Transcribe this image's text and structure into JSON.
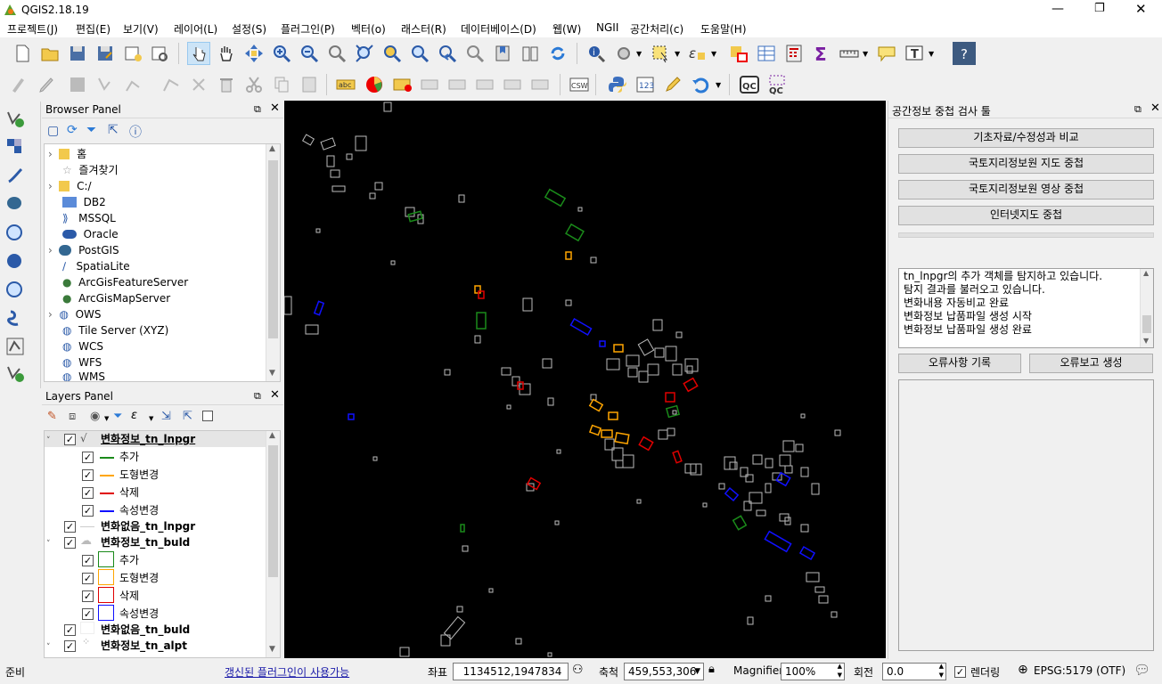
{
  "window": {
    "title": "QGIS2.18.19"
  },
  "menu": [
    "프로젝트(J)",
    "편집(E)",
    "보기(V)",
    "레이어(L)",
    "설정(S)",
    "플러그인(P)",
    "벡터(o)",
    "래스터(R)",
    "데이터베이스(D)",
    "웹(W)",
    "NGII",
    "공간처리(c)",
    "도움말(H)"
  ],
  "browser": {
    "title": "Browser Panel",
    "items": [
      "홈",
      "즐겨찾기",
      "C:/",
      "DB2",
      "MSSQL",
      "Oracle",
      "PostGIS",
      "SpatiaLite",
      "ArcGisFeatureServer",
      "ArcGisMapServer",
      "OWS",
      "Tile Server (XYZ)",
      "WCS",
      "WFS",
      "WMS"
    ]
  },
  "layers": {
    "title": "Layers Panel",
    "items": [
      {
        "label": "변화정보_tn_lnpgr",
        "bold": true
      },
      {
        "label": "추가"
      },
      {
        "label": "도형변경"
      },
      {
        "label": "삭제"
      },
      {
        "label": "속성변경"
      },
      {
        "label": "변화없음_tn_lnpgr",
        "bold": true
      },
      {
        "label": "변화정보_tn_buld",
        "bold": true
      },
      {
        "label": "추가"
      },
      {
        "label": "도형변경"
      },
      {
        "label": "삭제"
      },
      {
        "label": "속성변경"
      },
      {
        "label": "변화없음_tn_buld",
        "bold": true
      },
      {
        "label": "변화정보_tn_alpt",
        "bold": true
      }
    ]
  },
  "colors": {
    "add": "#1a8a1a",
    "shape": "#ffa500",
    "delete": "#e00000",
    "attr": "#1010ff"
  },
  "tool_panel": {
    "title": "공간정보 중첩 검사 툴",
    "buttons": [
      "기초자료/수정성과 비교",
      "국토지리정보원 지도 중첩",
      "국토지리정보원 영상 중첩",
      "인터넷지도 중첩"
    ],
    "log": [
      "tn_lnpgr의 추가 객체를 탐지하고 있습니다.",
      "탐지 결과를 불러오고 있습니다.",
      "변화내용 자동비교 완료",
      "변화정보 납품파일 생성 시작",
      "변화정보 납품파일 생성 완료"
    ],
    "error_record": "오류사항 기록",
    "error_report": "오류보고 생성"
  },
  "status": {
    "ready": "준비",
    "plugin_link": "갱신된 플러그인이 사용가능",
    "coord_label": "좌표",
    "coord_value": "1134512,1947834",
    "scale_label": "축척",
    "scale_value": "459,553,306",
    "magnifier_label": "Magnifier",
    "magnifier_value": "100%",
    "rotation_label": "회전",
    "rotation_value": "0.0",
    "render_label": "렌더링",
    "epsg": "EPSG:5179 (OTF)"
  }
}
